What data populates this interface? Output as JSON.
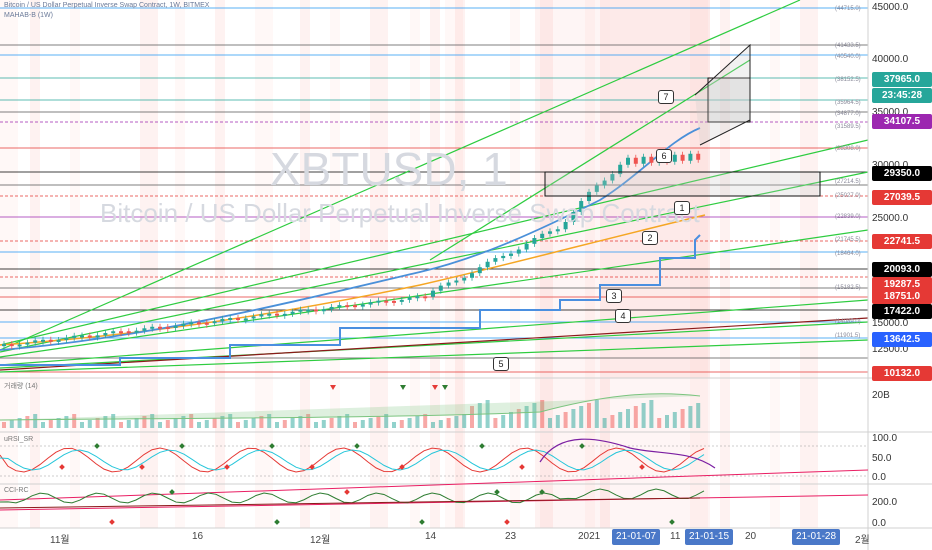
{
  "header": {
    "title": "Bitcoin / US Dollar Perpetual Inverse Swap Contract, 1W, BITMEX",
    "indicator": "MAHAB-B (1W)"
  },
  "watermark": {
    "symbol": "XBTUSD, 1",
    "description": "Bitcoin / US Dollar Perpetual Inverse Swap Contract"
  },
  "price_axis": [
    "45000.0",
    "40000.0",
    "35000.0",
    "30000.0",
    "25000.0",
    "20000.0",
    "15000.0",
    "12500.0",
    "10000.0"
  ],
  "price_labels": [
    {
      "text": "37965.0",
      "bg": "#26a69a",
      "fg": "#ffffff"
    },
    {
      "text": "23:45:28",
      "bg": "#26a69a",
      "fg": "#ffffff"
    },
    {
      "text": "34107.5",
      "bg": "#9c27b0",
      "fg": "#ffffff"
    },
    {
      "text": "29350.0",
      "bg": "#000000",
      "fg": "#ffffff"
    },
    {
      "text": "27039.5",
      "bg": "#e53935",
      "fg": "#ffffff"
    },
    {
      "text": "22741.5",
      "bg": "#e53935",
      "fg": "#ffffff"
    },
    {
      "text": "20093.0",
      "bg": "#000000",
      "fg": "#ffffff"
    },
    {
      "text": "19287.5",
      "bg": "#e53935",
      "fg": "#ffffff"
    },
    {
      "text": "18751.0",
      "bg": "#e53935",
      "fg": "#ffffff"
    },
    {
      "text": "17422.0",
      "bg": "#000000",
      "fg": "#ffffff"
    },
    {
      "text": "13642.5",
      "bg": "#2962ff",
      "fg": "#ffffff"
    },
    {
      "text": "10132.0",
      "bg": "#e53935",
      "fg": "#ffffff"
    }
  ],
  "level_texts": [
    "(44715.0)",
    "(41433.5)",
    "(40540.0)",
    "(38152.5)",
    "(35964.5)",
    "(34877.0)",
    "(31589.5)",
    "(28308.0)",
    "(27214.5)",
    "(25027.0)",
    "(22839.0)",
    "(21745.5)",
    "(18464.0)",
    "(15182.5)",
    "(14089.0)",
    "(11901.5)"
  ],
  "number_markers": [
    "7",
    "6",
    "1",
    "2",
    "3",
    "4",
    "5"
  ],
  "panes": {
    "volume": {
      "label": "거래량 (14)",
      "axis": [
        "20B"
      ]
    },
    "rsi": {
      "label": "uRSI_SR",
      "axis": [
        "100.0",
        "50.0",
        "0.0"
      ]
    },
    "cci": {
      "label": "CCI-RC",
      "axis": [
        "200.0",
        "0.0"
      ]
    }
  },
  "time_axis": [
    "11월",
    "16",
    "12월",
    "14",
    "23",
    "2021",
    "11",
    "20",
    "2월"
  ],
  "time_highlights": [
    "21-01-07",
    "21-01-15",
    "21-01-28"
  ],
  "colors": {
    "up": "#26a69a",
    "down": "#ef5350",
    "trend": "#2ecc40",
    "ma": "#4a90d9",
    "ema": "#f5a623",
    "level_red": "#e53935",
    "level_blue": "#2196f3"
  }
}
